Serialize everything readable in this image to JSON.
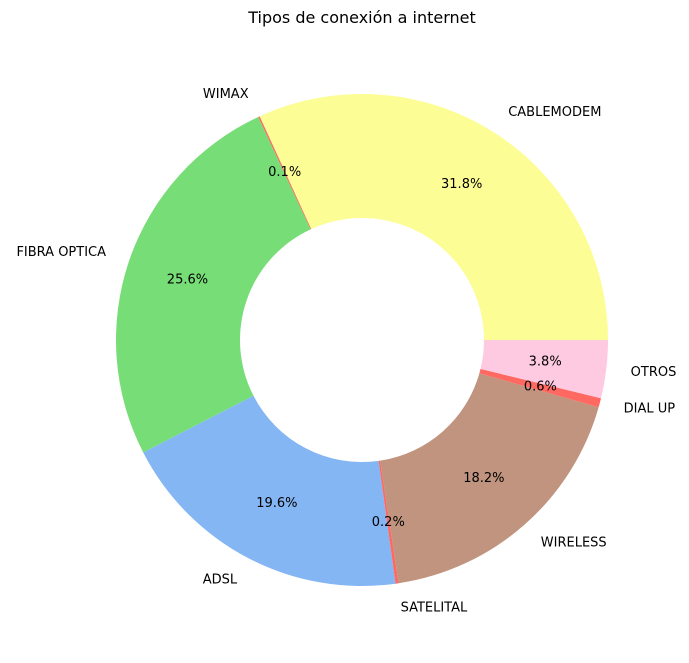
{
  "chart_data": {
    "type": "pie",
    "title": "Tipos de conexión a internet",
    "donut": true,
    "series": [
      {
        "label": "CABLEMODEM",
        "percent": 31.8,
        "pct_text": "31.8%",
        "color": "#fdfd96"
      },
      {
        "label": "WIMAX",
        "percent": 0.1,
        "pct_text": "0.1%",
        "color": "#ff6961"
      },
      {
        "label": "FIBRA OPTICA",
        "percent": 25.6,
        "pct_text": "25.6%",
        "color": "#77dd77"
      },
      {
        "label": "ADSL",
        "percent": 19.6,
        "pct_text": "19.6%",
        "color": "#84b6f4"
      },
      {
        "label": "SATELITAL",
        "percent": 0.2,
        "pct_text": "0.2%",
        "color": "#ff6961"
      },
      {
        "label": "WIRELESS",
        "percent": 18.2,
        "pct_text": "18.2%",
        "color": "#c0947e"
      },
      {
        "label": "DIAL UP",
        "percent": 0.6,
        "pct_text": "0.6%",
        "color": "#ff6961"
      },
      {
        "label": "OTROS",
        "percent": 3.8,
        "pct_text": "3.8%",
        "color": "#fdcae1"
      }
    ]
  }
}
